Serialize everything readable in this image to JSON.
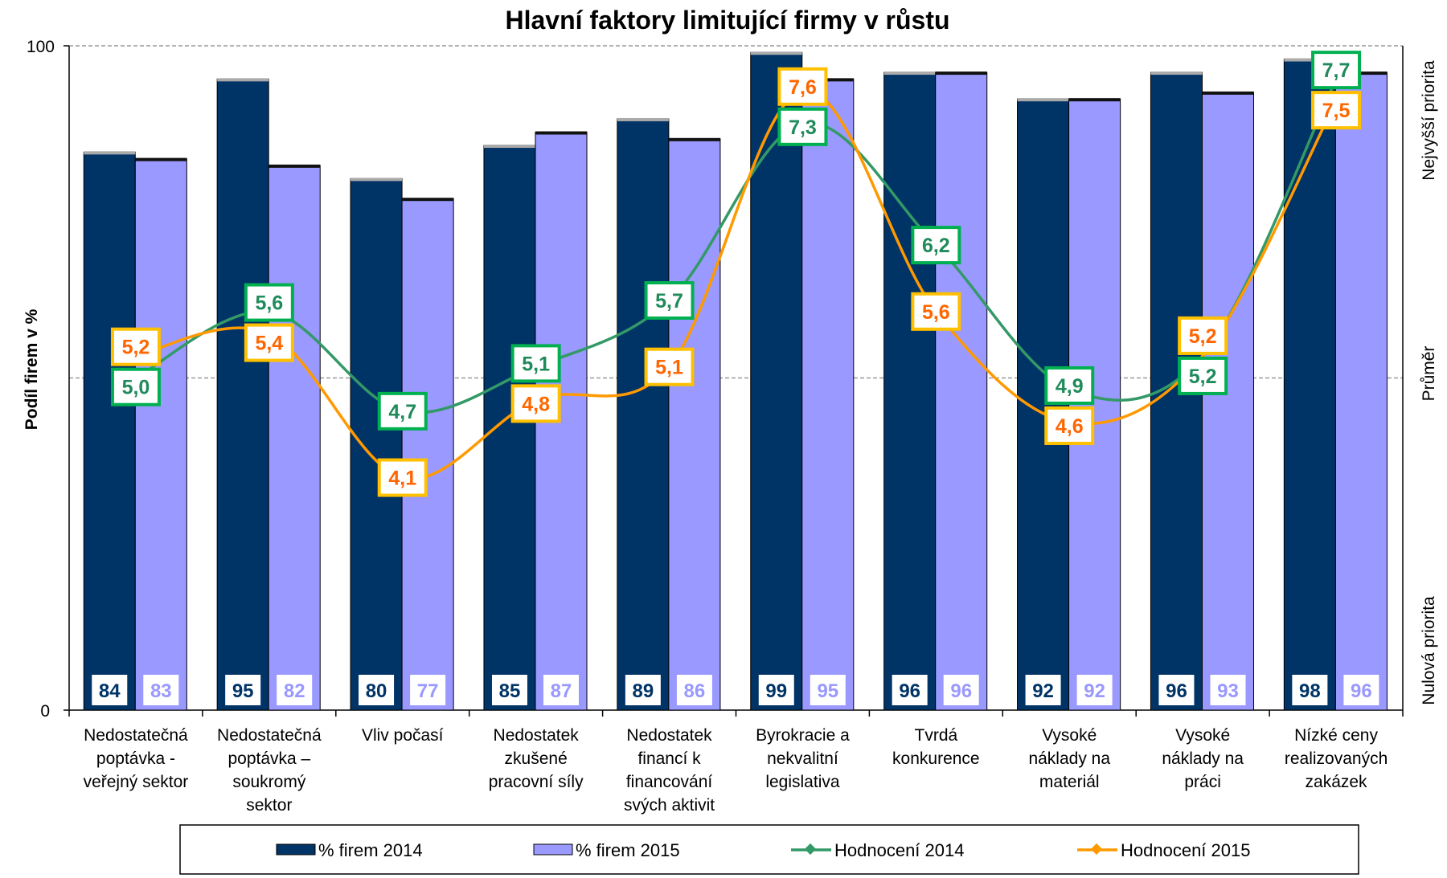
{
  "chart_data": {
    "type": "bar",
    "title": "Hlavní faktory limitující firmy v růstu",
    "ylabel": "Podíl firem v %",
    "ylim": [
      0,
      100
    ],
    "y_ticks": [
      "0",
      "100"
    ],
    "y2lim": [
      2,
      8
    ],
    "y2_labels": [
      "Nejvyšší priorita",
      "Průměr",
      "Nulová priorita"
    ],
    "grid": "dashed at 50 and 100",
    "legend_position": "bottom",
    "categories": [
      [
        "Nedostatečná",
        "poptávka -",
        "veřejný sektor"
      ],
      [
        "Nedostatečná",
        "poptávka –",
        "soukromý",
        "sektor"
      ],
      [
        "Vliv počasí"
      ],
      [
        "Nedostatek",
        "zkušené",
        "pracovní síly"
      ],
      [
        "Nedostatek",
        "financí k",
        "financování",
        "svých aktivit"
      ],
      [
        "Byrokracie a",
        "nekvalitní",
        "legislativa"
      ],
      [
        "Tvrdá",
        "konkurence"
      ],
      [
        "Vysoké",
        "náklady na",
        "materiál"
      ],
      [
        "Vysoké",
        "náklady na",
        "práci"
      ],
      [
        "Nízké ceny",
        "realizovaných",
        "zakázek"
      ]
    ],
    "series": [
      {
        "name": "% firem 2014",
        "kind": "bar",
        "color": "#003366",
        "values": [
          84,
          95,
          80,
          85,
          89,
          99,
          96,
          92,
          96,
          98
        ],
        "labels": [
          "84",
          "95",
          "80",
          "85",
          "89",
          "99",
          "96",
          "92",
          "96",
          "98"
        ]
      },
      {
        "name": "% firem 2015",
        "kind": "bar",
        "color": "#9999FF",
        "values": [
          83,
          82,
          77,
          87,
          86,
          95,
          96,
          92,
          93,
          96
        ],
        "labels": [
          "83",
          "82",
          "77",
          "87",
          "86",
          "95",
          "96",
          "92",
          "93",
          "96"
        ]
      },
      {
        "name": "Hodnocení 2014",
        "kind": "line",
        "axis": "secondary",
        "color": "#339966",
        "border": "#00B050",
        "text": "#1F8A5A",
        "values": [
          5.0,
          5.6,
          4.7,
          5.1,
          5.7,
          7.3,
          6.2,
          4.9,
          5.2,
          7.7
        ],
        "labels": [
          "5,0",
          "5,6",
          "4,7",
          "5,1",
          "5,7",
          "7,3",
          "6,2",
          "4,9",
          "5,2",
          "7,7"
        ]
      },
      {
        "name": "Hodnocení 2015",
        "kind": "line",
        "axis": "secondary",
        "color": "#FF9900",
        "border": "#FFC000",
        "text": "#FF6600",
        "values": [
          5.2,
          5.4,
          4.1,
          4.8,
          5.1,
          7.6,
          5.6,
          4.6,
          5.2,
          7.5
        ],
        "labels": [
          "5,2",
          "5,4",
          "4,1",
          "4,8",
          "5,1",
          "7,6",
          "5,6",
          "4,6",
          "5,2",
          "7,5"
        ]
      }
    ]
  }
}
